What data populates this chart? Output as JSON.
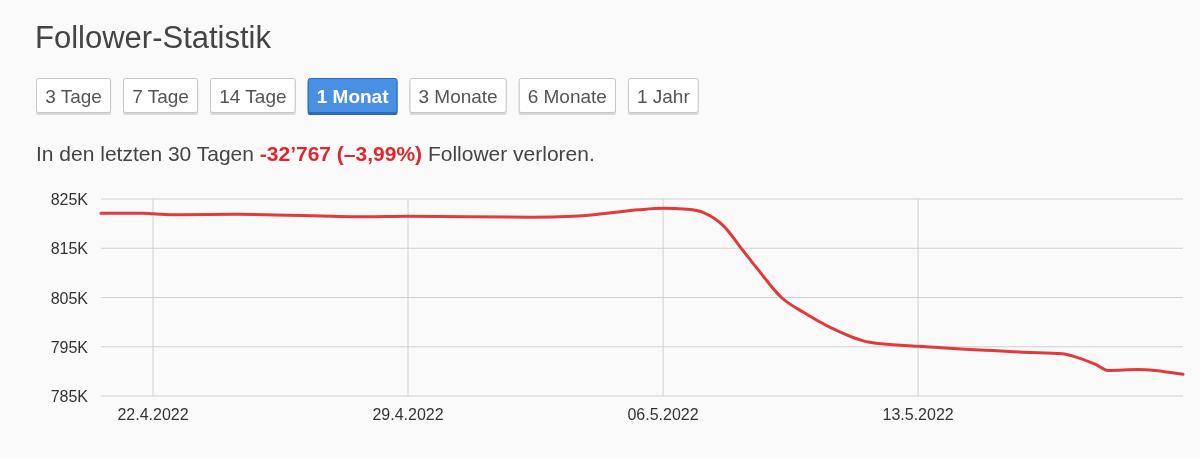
{
  "chart_data": {
    "type": "line",
    "title": "Follower-Statistik",
    "annotations": [
      "3 Tage",
      "7 Tage",
      "14 Tage",
      "1 Monat",
      "3 Monate",
      "6 Monate",
      "1 Jahr",
      "In den letzten 30 Tagen",
      "-32’767 (–3,99%)",
      "Follower verloren."
    ],
    "x": [
      "2022-04-20T13:45",
      "2022-04-21T17:00",
      "2022-04-22T00:00",
      "2022-04-22T16:00",
      "2022-04-24T08:00",
      "2022-04-27T20:00",
      "2022-04-29T00:00",
      "2022-05-02T09:00",
      "2022-05-03T13:00",
      "2022-05-04T08:00",
      "2022-05-05T08:00",
      "2022-05-06T00:00",
      "2022-05-06T16:00",
      "2022-05-07T03:00",
      "2022-05-07T16:00",
      "2022-05-08T04:00",
      "2022-05-08T15:00",
      "2022-05-09T06:00",
      "2022-05-09T21:00",
      "2022-05-10T15:00",
      "2022-05-11T16:00",
      "2022-05-13T00:00",
      "2022-05-14T20:00",
      "2022-05-15T21:00",
      "2022-05-16T23:00",
      "2022-05-17T06:00",
      "2022-05-17T21:00",
      "2022-05-18T05:00",
      "2022-05-19T01:00",
      "2022-05-19T12:00",
      "2022-05-20T06:30"
    ],
    "values": [
      822100,
      822100,
      822000,
      821800,
      821900,
      821400,
      821500,
      821300,
      821500,
      822000,
      822800,
      823100,
      822900,
      822200,
      819500,
      814800,
      810500,
      805000,
      801900,
      798800,
      795900,
      795100,
      794300,
      793900,
      793600,
      793100,
      791400,
      790200,
      790400,
      790200,
      789400
    ],
    "color": "#e3393c",
    "xlim": [
      "2022-04-20T13:45",
      "2022-05-20T06:30"
    ],
    "xticks": [
      {
        "value": "2022-04-22",
        "label": "22.4.2022"
      },
      {
        "value": "2022-04-29",
        "label": "29.4.2022"
      },
      {
        "value": "2022-05-06",
        "label": "06.5.2022"
      },
      {
        "value": "2022-05-13",
        "label": "13.5.2022"
      }
    ],
    "ylim": [
      785000,
      825000
    ],
    "yticks": [
      {
        "value": 785000,
        "label": "785K"
      },
      {
        "value": 795000,
        "label": "795K"
      },
      {
        "value": 805000,
        "label": "805K"
      },
      {
        "value": 815000,
        "label": "815K"
      },
      {
        "value": 825000,
        "label": "825K"
      }
    ],
    "grid": true
  }
}
